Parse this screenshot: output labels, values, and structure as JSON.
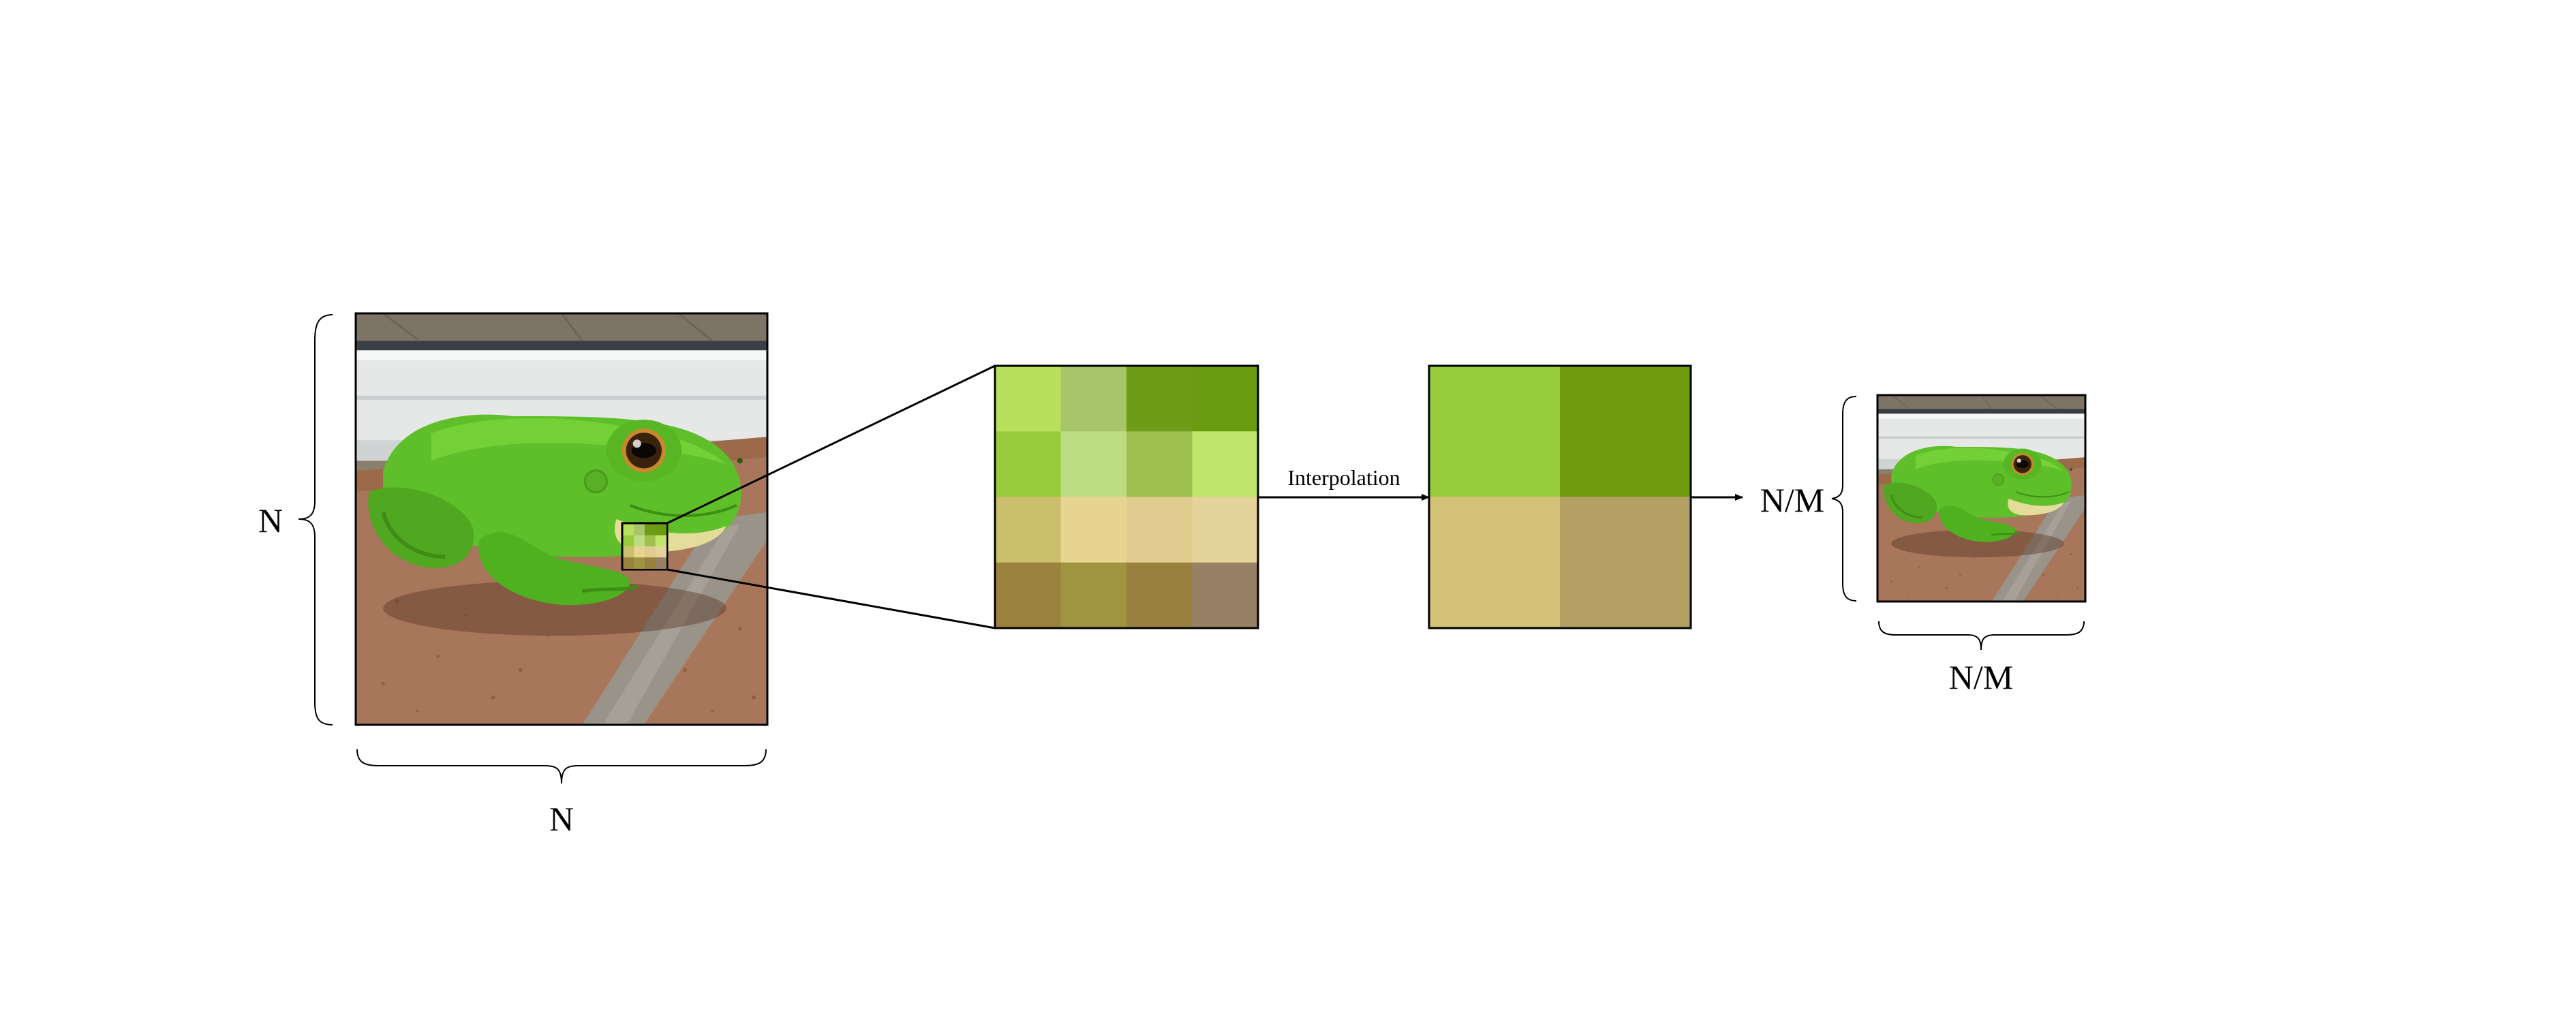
{
  "labels": {
    "original_height": "N",
    "original_width": "N",
    "arrow_label": "Interpolation",
    "result_height": "N/M",
    "result_width": "N/M"
  },
  "patch_4x4": [
    [
      "#b8e05c",
      "#a9c56a",
      "#6f9c16",
      "#6a9c12"
    ],
    [
      "#98cc3c",
      "#bedc82",
      "#9fbf50",
      "#c0e66c"
    ],
    [
      "#cbbe6c",
      "#e6d490",
      "#e0cc8e",
      "#e4d39a"
    ],
    [
      "#9a823c",
      "#a09440",
      "#98803e",
      "#988064"
    ]
  ],
  "patch_2x2": [
    [
      "#97cc3c",
      "#729c10"
    ],
    [
      "#d4c278",
      "#b4a062"
    ]
  ],
  "colors": {
    "frog_green": "#5fbf2a",
    "brick": "#9c6a48",
    "wall": "#e8eaea",
    "border": "#000000"
  }
}
